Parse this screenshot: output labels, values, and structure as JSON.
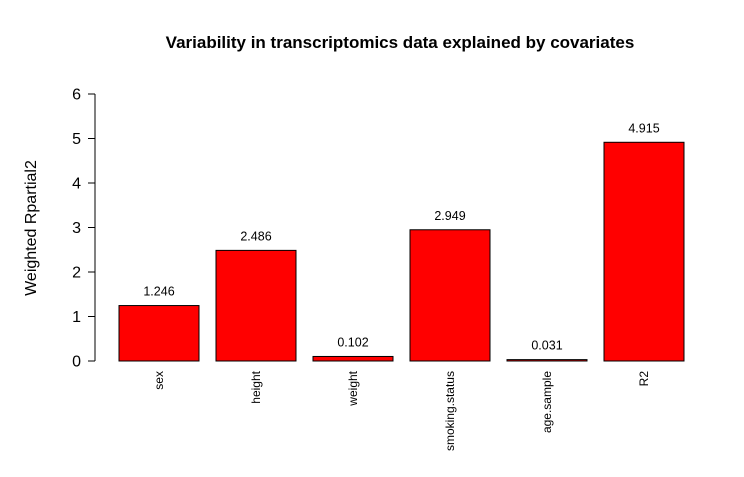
{
  "chart_data": {
    "type": "bar",
    "title": "Variability in transcriptomics data explained by covariates",
    "xlabel": "",
    "ylabel": "Weighted Rpartial2",
    "categories": [
      "sex",
      "height",
      "weight",
      "smoking.status",
      "age.sample",
      "R2"
    ],
    "values": [
      1.246,
      2.486,
      0.102,
      2.949,
      0.031,
      4.915
    ],
    "data_labels": [
      "1.246",
      "2.486",
      "0.102",
      "2.949",
      "0.031",
      "4.915"
    ],
    "yticks": [
      "0",
      "1",
      "2",
      "3",
      "4",
      "5",
      "6"
    ],
    "ylim": [
      0,
      6
    ],
    "bar_color": "#ff0000",
    "grid": false,
    "legend": "none"
  }
}
